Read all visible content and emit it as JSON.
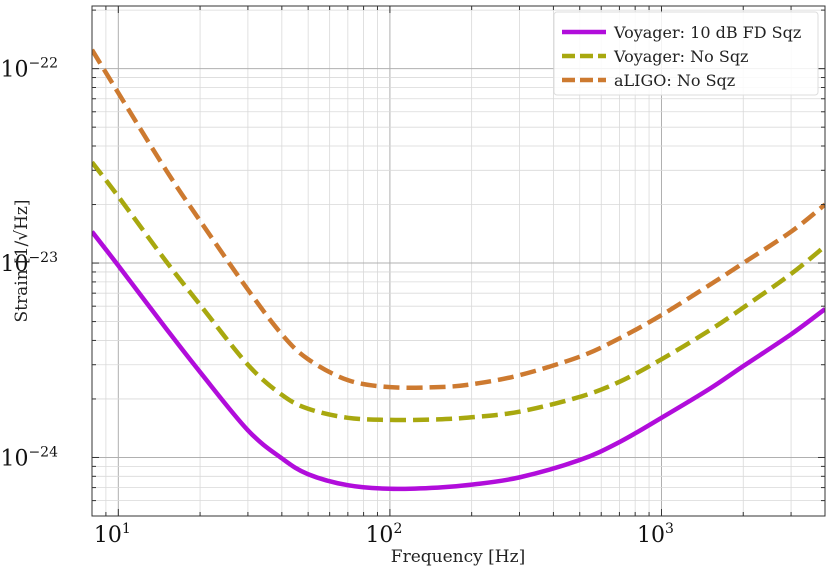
{
  "chart_data": {
    "type": "line",
    "xlabel": "Frequency [Hz]",
    "ylabel": "Strain [1/√Hz]",
    "xscale": "log",
    "yscale": "log",
    "xlim": [
      8,
      4000
    ],
    "ylim": [
      5e-25,
      2.1e-22
    ],
    "grid": true,
    "legend_position": "top-right",
    "x_ticks": [
      {
        "value": 10,
        "label": "10",
        "exp": "1"
      },
      {
        "value": 100,
        "label": "10",
        "exp": "2"
      },
      {
        "value": 1000,
        "label": "10",
        "exp": "3"
      }
    ],
    "y_ticks": [
      {
        "value": 1e-24,
        "label": "10",
        "exp": "−24"
      },
      {
        "value": 1e-23,
        "label": "10",
        "exp": "−23"
      },
      {
        "value": 1e-22,
        "label": "10",
        "exp": "−22"
      }
    ],
    "series": [
      {
        "name": "Voyager: 10 dB FD Sqz",
        "color": "#b10ddb",
        "style": "solid",
        "x": [
          8,
          10,
          15,
          20,
          30,
          40,
          50,
          70,
          100,
          150,
          200,
          300,
          500,
          700,
          1000,
          1500,
          2000,
          3000,
          4000
        ],
        "y": [
          1.45e-23,
          9.7e-24,
          4.6e-24,
          2.75e-24,
          1.38e-24,
          9.9e-25,
          8.2e-25,
          7.2e-25,
          6.9e-25,
          7e-25,
          7.25e-25,
          7.9e-25,
          9.7e-25,
          1.2e-24,
          1.6e-24,
          2.25e-24,
          2.95e-24,
          4.3e-24,
          5.8e-24
        ]
      },
      {
        "name": "Voyager: No Sqz",
        "color": "#a8a80f",
        "style": "dashed",
        "x": [
          8,
          10,
          15,
          20,
          30,
          40,
          50,
          70,
          100,
          150,
          200,
          300,
          500,
          700,
          1000,
          1500,
          2000,
          3000,
          4000
        ],
        "y": [
          3.3e-23,
          2.2e-23,
          1.02e-23,
          6.1e-24,
          3e-24,
          2.1e-24,
          1.78e-24,
          1.6e-24,
          1.56e-24,
          1.57e-24,
          1.61e-24,
          1.72e-24,
          2.05e-24,
          2.45e-24,
          3.2e-24,
          4.5e-24,
          5.9e-24,
          8.8e-24,
          1.22e-23
        ]
      },
      {
        "name": "aLIGO: No Sqz",
        "color": "#cd7a30",
        "style": "dashed",
        "x": [
          8,
          10,
          15,
          20,
          30,
          40,
          50,
          70,
          100,
          150,
          200,
          300,
          500,
          700,
          1000,
          1500,
          2000,
          3000,
          4000
        ],
        "y": [
          1.25e-22,
          7.5e-23,
          3e-23,
          1.65e-23,
          7.3e-24,
          4.3e-24,
          3.2e-24,
          2.5e-24,
          2.3e-24,
          2.3e-24,
          2.38e-24,
          2.65e-24,
          3.3e-24,
          4.1e-24,
          5.4e-24,
          7.7e-24,
          1e-23,
          1.45e-23,
          2e-23
        ]
      }
    ]
  }
}
